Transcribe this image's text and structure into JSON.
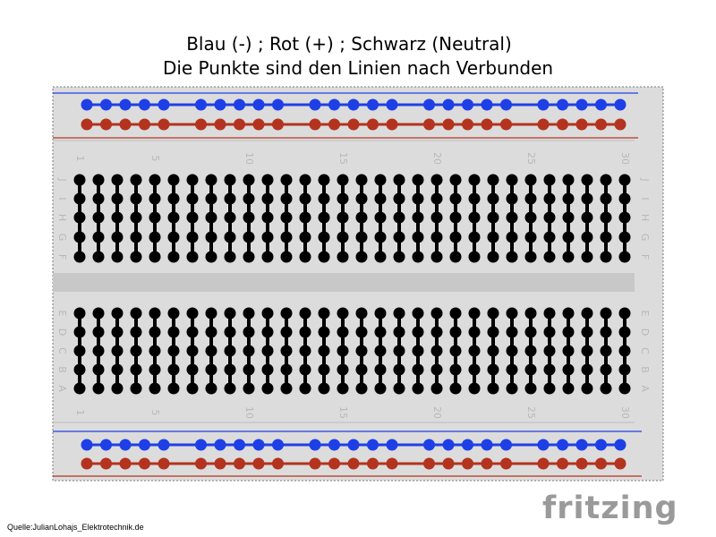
{
  "header": {
    "line1": "Blau (-) ; Rot (+) ; Schwarz (Neutral)",
    "line2": "Die Punkte sind den Linien nach Verbunden"
  },
  "breadboard": {
    "columns": 30,
    "column_number_labels": [
      "1",
      "5",
      "10",
      "15",
      "20",
      "25",
      "30"
    ],
    "upper_row_letters": [
      "J",
      "I",
      "H",
      "G",
      "F"
    ],
    "lower_row_letters": [
      "E",
      "D",
      "C",
      "B",
      "A"
    ],
    "rail_groups": 5,
    "rail_dots_per_group": 5
  },
  "colors": {
    "blue": "#1f3fe6",
    "red": "#b3331f",
    "black": "#000000",
    "board": "#dcdcdc",
    "label_gray": "#b8b8b8"
  },
  "footer": {
    "source": "Quelle:JulianLohajs_Elektrotechnik.de",
    "logo": "fritzing"
  }
}
